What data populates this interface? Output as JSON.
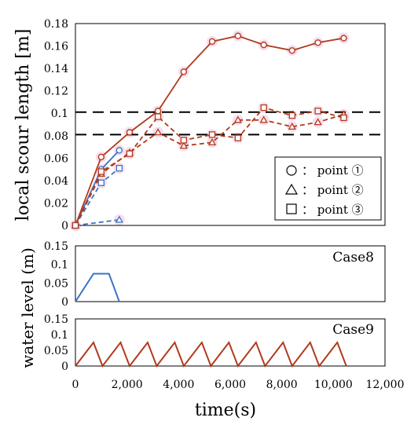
{
  "colors": {
    "case8": "#3a74c4",
    "case9": "#b13a1b",
    "highlight": "#f6d6e8"
  },
  "chart_data": [
    {
      "type": "line",
      "ylabel": "local scour length [m]",
      "ylim": [
        0,
        0.18
      ],
      "yticks": [
        "0",
        "0.02",
        "0.04",
        "0.06",
        "0.08",
        "0.1",
        "0.12",
        "0.14",
        "0.16",
        "0.18"
      ],
      "xlim": [
        0,
        12000
      ],
      "reference_lines": [
        0.081,
        0.101
      ],
      "legend": {
        "position": "bottom-right",
        "entries": [
          {
            "marker": "circle",
            "label": "： point ①"
          },
          {
            "marker": "triangle",
            "label": "： point ②"
          },
          {
            "marker": "square",
            "label": "： point ③"
          }
        ]
      },
      "series": [
        {
          "case": "Case8",
          "marker": "circle",
          "style": "solid",
          "x": [
            0,
            1000,
            1700
          ],
          "y": [
            0,
            0.05,
            0.067
          ]
        },
        {
          "case": "Case8",
          "marker": "triangle",
          "style": "dashed",
          "x": [
            0,
            1700
          ],
          "y": [
            0,
            0.005
          ]
        },
        {
          "case": "Case8",
          "marker": "square",
          "style": "dashed",
          "x": [
            0,
            1000,
            1700
          ],
          "y": [
            0,
            0.038,
            0.051
          ]
        },
        {
          "case": "Case9",
          "marker": "circle",
          "style": "solid",
          "x": [
            0,
            1000,
            2100,
            3200,
            4200,
            5300,
            6300,
            7300,
            8400,
            9400,
            10400
          ],
          "y": [
            0,
            0.061,
            0.083,
            0.102,
            0.137,
            0.164,
            0.169,
            0.161,
            0.156,
            0.163,
            0.167
          ]
        },
        {
          "case": "Case9",
          "marker": "triangle",
          "style": "dashed",
          "x": [
            0,
            1000,
            2100,
            3200,
            4200,
            5300,
            6300,
            7300,
            8400,
            9400,
            10400
          ],
          "y": [
            0,
            0.046,
            0.065,
            0.083,
            0.071,
            0.074,
            0.094,
            0.094,
            0.088,
            0.092,
            0.099
          ]
        },
        {
          "case": "Case9",
          "marker": "square",
          "style": "dashed",
          "x": [
            0,
            1000,
            2100,
            3200,
            4200,
            5300,
            6300,
            7300,
            8400,
            9400,
            10400
          ],
          "y": [
            0,
            0.048,
            0.064,
            0.097,
            0.076,
            0.081,
            0.078,
            0.105,
            0.098,
            0.102,
            0.096
          ]
        }
      ]
    },
    {
      "type": "line",
      "label": "Case8",
      "ylim": [
        0,
        0.15
      ],
      "yticks": [
        "0.15",
        "0.1",
        "0.05",
        "0"
      ],
      "xlim": [
        0,
        12000
      ],
      "series": [
        {
          "x": [
            0,
            700,
            1300,
            1700
          ],
          "y": [
            0,
            0.075,
            0.075,
            0
          ]
        }
      ]
    },
    {
      "type": "line",
      "label": "Case9",
      "ylim": [
        0,
        0.15
      ],
      "yticks": [
        "0.15",
        "0.1",
        "0.05",
        "0"
      ],
      "xlim": [
        0,
        12000
      ],
      "series": [
        {
          "x": [
            0,
            700,
            1050,
            1750,
            2100,
            2800,
            3150,
            3850,
            4200,
            4900,
            5250,
            5950,
            6300,
            7000,
            7350,
            8050,
            8400,
            9100,
            9450,
            10150,
            10500
          ],
          "y": [
            0,
            0.075,
            0,
            0.075,
            0,
            0.075,
            0,
            0.075,
            0,
            0.075,
            0,
            0.075,
            0,
            0.075,
            0,
            0.075,
            0,
            0.075,
            0,
            0.075,
            0
          ]
        }
      ]
    }
  ],
  "shared_axis": {
    "xlabel": "time(s)",
    "xticks": [
      "0",
      "2,000",
      "4,000",
      "6,000",
      "8,000",
      "10,000",
      "12,000"
    ],
    "lower_ylabel": "water level (m)"
  }
}
